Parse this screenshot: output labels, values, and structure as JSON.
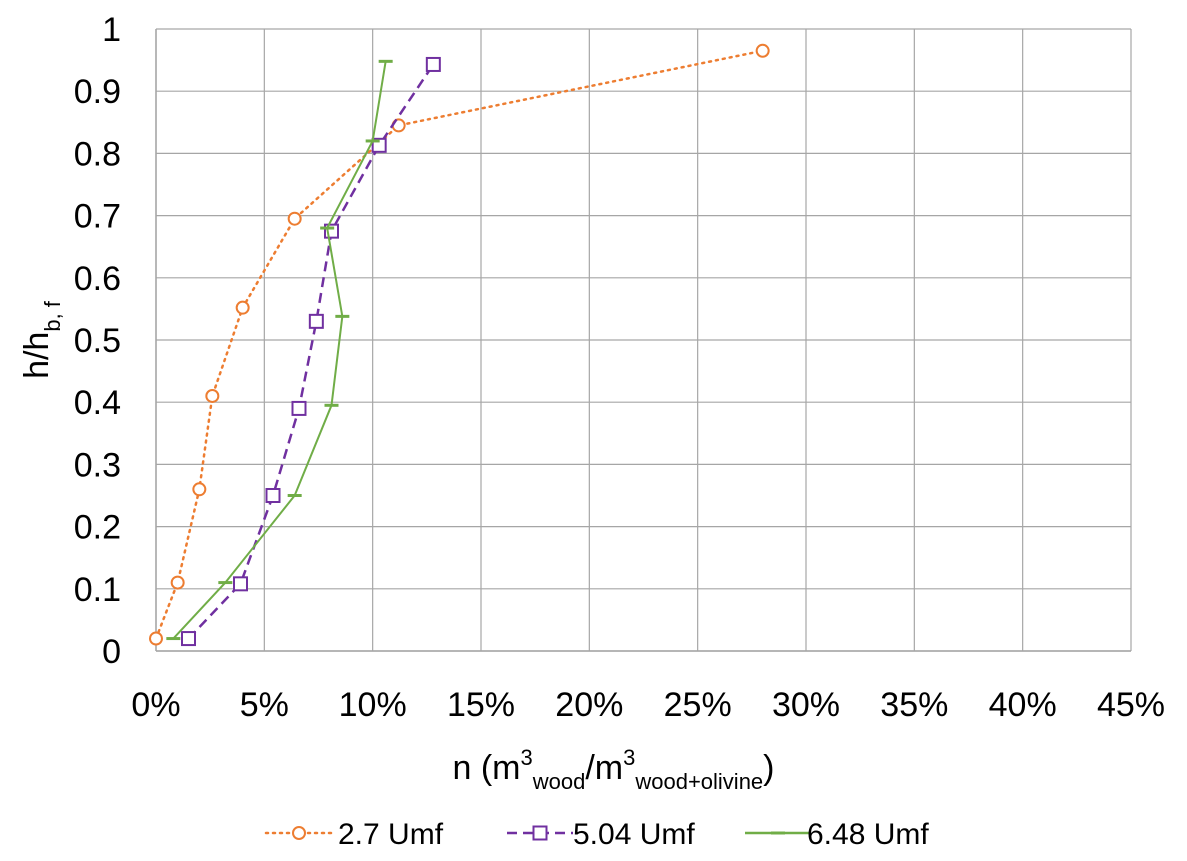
{
  "chart_data": {
    "type": "scatter",
    "title": "",
    "xlabel": {
      "main": "n (m",
      "sup1": "3",
      "sub1": "wood",
      "sep": "/m",
      "sup2": "3",
      "sub2": "wood+olivine",
      "end": ")"
    },
    "ylabel": {
      "main": "h/h",
      "sub": "b, f"
    },
    "xlim": [
      0,
      0.45
    ],
    "ylim": [
      0,
      1
    ],
    "xticks": [
      0,
      0.05,
      0.1,
      0.15,
      0.2,
      0.25,
      0.3,
      0.35,
      0.4,
      0.45
    ],
    "xtick_labels": [
      "0%",
      "5%",
      "10%",
      "15%",
      "20%",
      "25%",
      "30%",
      "35%",
      "40%",
      "45%"
    ],
    "yticks": [
      0,
      0.1,
      0.2,
      0.3,
      0.4,
      0.5,
      0.6,
      0.7,
      0.8,
      0.9,
      1
    ],
    "ytick_labels": [
      "0",
      "0.1",
      "0.2",
      "0.3",
      "0.4",
      "0.5",
      "0.6",
      "0.7",
      "0.8",
      "0.9",
      "1"
    ],
    "grid": true,
    "legend_position": "bottom",
    "series": [
      {
        "name": "2.7 Umf",
        "color": "#ED7D31",
        "line_style": "dotted",
        "marker": "circle",
        "x": [
          0.0,
          0.01,
          0.02,
          0.026,
          0.04,
          0.064,
          0.112,
          0.28
        ],
        "y": [
          0.02,
          0.11,
          0.26,
          0.41,
          0.552,
          0.695,
          0.845,
          0.965
        ]
      },
      {
        "name": "5.04 Umf",
        "color": "#7030A0",
        "line_style": "dashed",
        "marker": "square",
        "x": [
          0.015,
          0.039,
          0.054,
          0.066,
          0.074,
          0.081,
          0.103,
          0.128
        ],
        "y": [
          0.02,
          0.108,
          0.25,
          0.39,
          0.53,
          0.675,
          0.813,
          0.943
        ]
      },
      {
        "name": "6.48 Umf",
        "color": "#70AD47",
        "line_style": "solid",
        "marker": "dash",
        "x": [
          0.008,
          0.032,
          0.064,
          0.081,
          0.086,
          0.079,
          0.1,
          0.106
        ],
        "y": [
          0.02,
          0.11,
          0.25,
          0.395,
          0.538,
          0.68,
          0.82,
          0.948
        ]
      }
    ]
  }
}
